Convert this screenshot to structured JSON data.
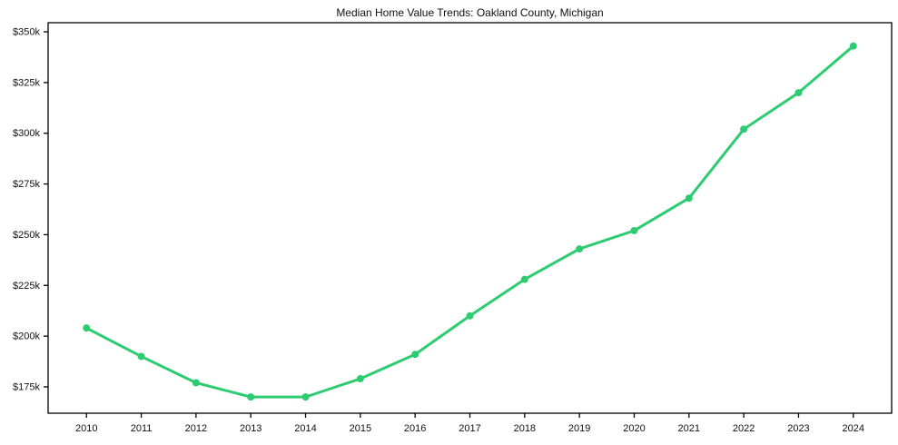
{
  "chart_data": {
    "type": "line",
    "title": "Median Home Value Trends: Oakland County, Michigan",
    "xlabel": "",
    "ylabel": "",
    "units": "USD thousands",
    "x": [
      2010,
      2011,
      2012,
      2013,
      2014,
      2015,
      2016,
      2017,
      2018,
      2019,
      2020,
      2021,
      2022,
      2023,
      2024
    ],
    "x_tick_labels": [
      "2010",
      "2011",
      "2012",
      "2013",
      "2014",
      "2015",
      "2016",
      "2017",
      "2018",
      "2019",
      "2020",
      "2021",
      "2022",
      "2023",
      "2024"
    ],
    "series": [
      {
        "name": "Median Home Value",
        "values": [
          204,
          190,
          177,
          170,
          170,
          179,
          191,
          210,
          228,
          243,
          252,
          268,
          302,
          320,
          343
        ],
        "color": "#2ecc71",
        "marker": "circle",
        "line_width": 3,
        "marker_radius": 4
      }
    ],
    "y_ticks": [
      175,
      200,
      225,
      250,
      275,
      300,
      325,
      350
    ],
    "y_tick_labels": [
      "$175k",
      "$200k",
      "$225k",
      "$250k",
      "$275k",
      "$300k",
      "$325k",
      "$350k"
    ],
    "xlim": [
      2009.3,
      2024.7
    ],
    "ylim": [
      162,
      354.5
    ],
    "grid": false,
    "legend_position": "none",
    "frame": "box"
  },
  "colors": {
    "line": "#2ecc71",
    "axis": "#000000",
    "text": "#111111",
    "background": "#ffffff"
  }
}
